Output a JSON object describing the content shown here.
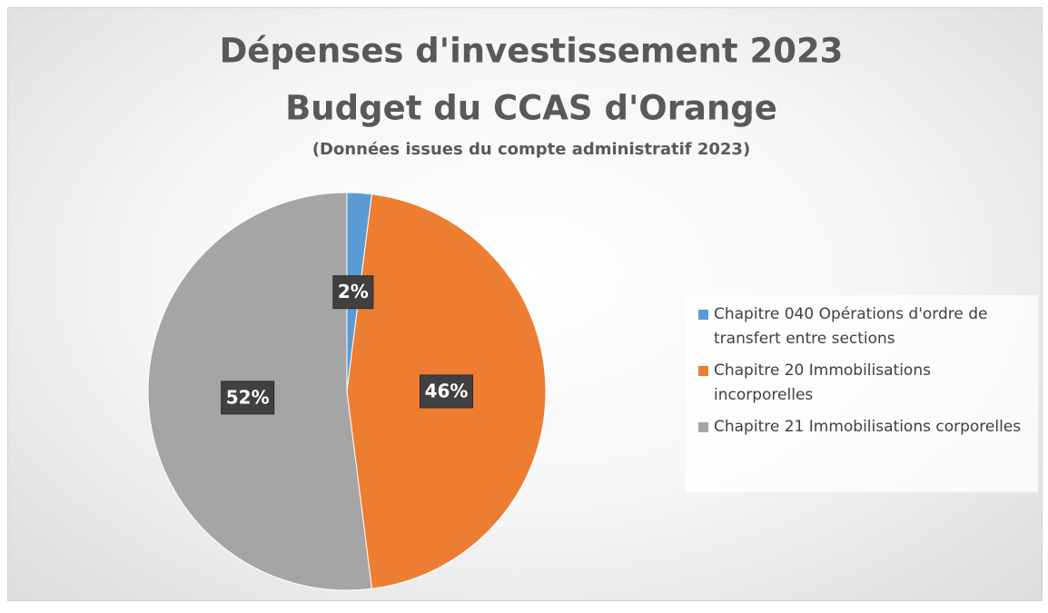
{
  "chart_data": {
    "type": "pie",
    "title": [
      "Dépenses d'investissement 2023",
      "Budget du CCAS d'Orange"
    ],
    "subtitle": "(Données issues du compte administratif 2023)",
    "categories": [
      "Chapitre 040 Opérations d'ordre de transfert entre sections",
      "Chapitre 20 Immobilisations incorporelles",
      "Chapitre 21 Immobilisations corporelles"
    ],
    "values": [
      2,
      46,
      52
    ],
    "value_labels": [
      "2%",
      "46%",
      "52%"
    ],
    "colors": [
      "#5b9bd5",
      "#ed7d31",
      "#a5a5a5"
    ],
    "legend": "right"
  }
}
